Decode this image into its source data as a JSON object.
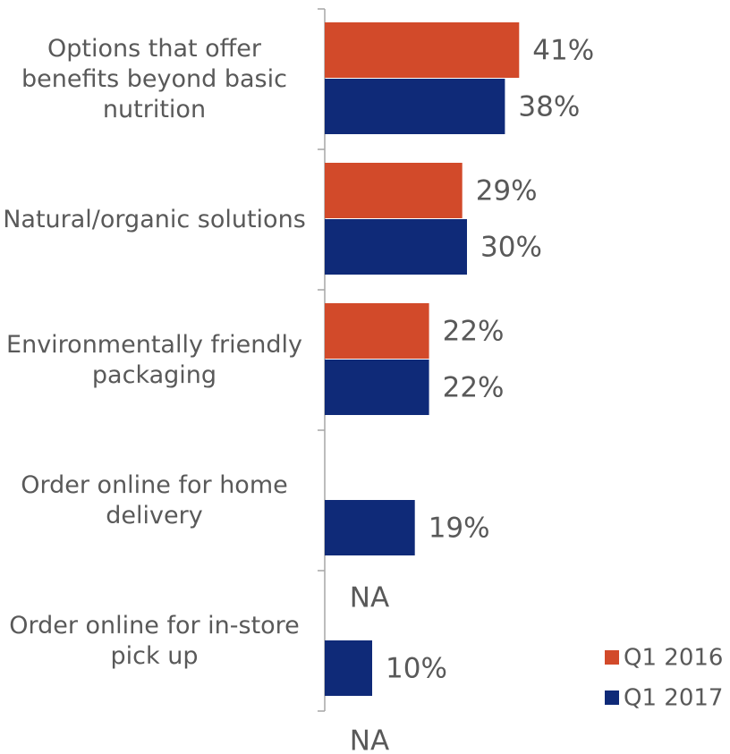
{
  "chart_data": {
    "type": "bar",
    "orientation": "horizontal",
    "categories": [
      "Options that offer benefits beyond basic nutrition",
      "Natural/organic solutions",
      "Environmentally friendly packaging",
      "Order online for home delivery",
      "Order online for in-store pick up"
    ],
    "series": [
      {
        "name": "Q1 2016",
        "color": "#d24a2a",
        "values": [
          41,
          29,
          22,
          null,
          null
        ],
        "value_labels": [
          "41%",
          "29%",
          "22%",
          "NA",
          "NA"
        ]
      },
      {
        "name": "Q1 2017",
        "color": "#0f2a78",
        "values": [
          38,
          30,
          22,
          19,
          10
        ],
        "value_labels": [
          "38%",
          "30%",
          "22%",
          "19%",
          "10%"
        ]
      }
    ],
    "legend": "bottom-right"
  }
}
